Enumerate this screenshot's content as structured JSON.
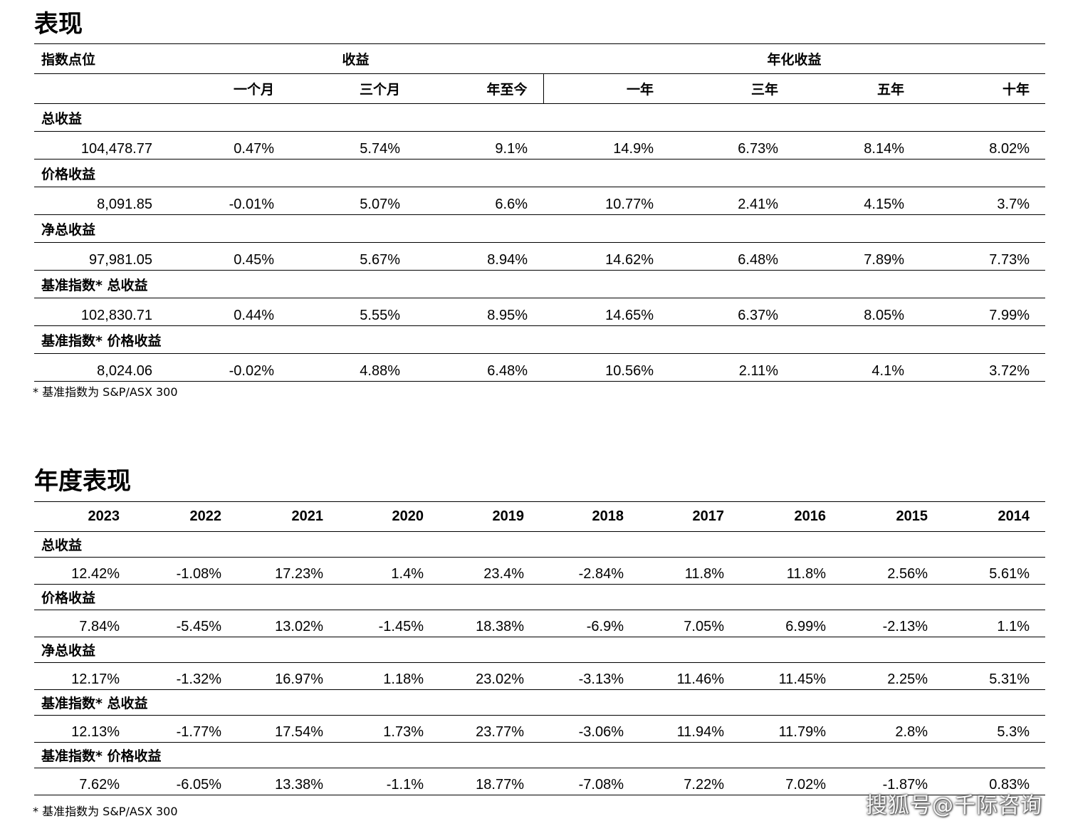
{
  "performance": {
    "title": "表现",
    "header": {
      "index_level": "指数点位",
      "returns": "收益",
      "annualized_returns": "年化收益",
      "periods": [
        "一个月",
        "三个月",
        "年至今",
        "一年",
        "三年",
        "五年",
        "十年"
      ]
    },
    "rows": [
      {
        "label": "总收益",
        "values": [
          "104,478.77",
          "0.47%",
          "5.74%",
          "9.1%",
          "14.9%",
          "6.73%",
          "8.14%",
          "8.02%"
        ]
      },
      {
        "label": "价格收益",
        "values": [
          "8,091.85",
          "-0.01%",
          "5.07%",
          "6.6%",
          "10.77%",
          "2.41%",
          "4.15%",
          "3.7%"
        ]
      },
      {
        "label": "净总收益",
        "values": [
          "97,981.05",
          "0.45%",
          "5.67%",
          "8.94%",
          "14.62%",
          "6.48%",
          "7.89%",
          "7.73%"
        ]
      },
      {
        "label": "基准指数* 总收益",
        "values": [
          "102,830.71",
          "0.44%",
          "5.55%",
          "8.95%",
          "14.65%",
          "6.37%",
          "8.05%",
          "7.99%"
        ]
      },
      {
        "label": "基准指数* 价格收益",
        "values": [
          "8,024.06",
          "-0.02%",
          "4.88%",
          "6.48%",
          "10.56%",
          "2.11%",
          "4.1%",
          "3.72%"
        ]
      }
    ],
    "footnote": "* 基准指数为 S&P/ASX 300"
  },
  "annual": {
    "title": "年度表现",
    "years": [
      "2023",
      "2022",
      "2021",
      "2020",
      "2019",
      "2018",
      "2017",
      "2016",
      "2015",
      "2014"
    ],
    "rows": [
      {
        "label": "总收益",
        "values": [
          "12.42%",
          "-1.08%",
          "17.23%",
          "1.4%",
          "23.4%",
          "-2.84%",
          "11.8%",
          "11.8%",
          "2.56%",
          "5.61%"
        ]
      },
      {
        "label": "价格收益",
        "values": [
          "7.84%",
          "-5.45%",
          "13.02%",
          "-1.45%",
          "18.38%",
          "-6.9%",
          "7.05%",
          "6.99%",
          "-2.13%",
          "1.1%"
        ]
      },
      {
        "label": "净总收益",
        "values": [
          "12.17%",
          "-1.32%",
          "16.97%",
          "1.18%",
          "23.02%",
          "-3.13%",
          "11.46%",
          "11.45%",
          "2.25%",
          "5.31%"
        ]
      },
      {
        "label": "基准指数* 总收益",
        "values": [
          "12.13%",
          "-1.77%",
          "17.54%",
          "1.73%",
          "23.77%",
          "-3.06%",
          "11.94%",
          "11.79%",
          "2.8%",
          "5.3%"
        ]
      },
      {
        "label": "基准指数* 价格收益",
        "values": [
          "7.62%",
          "-6.05%",
          "13.38%",
          "-1.1%",
          "18.77%",
          "-7.08%",
          "7.22%",
          "7.02%",
          "-1.87%",
          "0.83%"
        ]
      }
    ],
    "footnote": "* 基准指数为 S&P/ASX 300"
  },
  "watermark": "搜狐号@千际咨询"
}
